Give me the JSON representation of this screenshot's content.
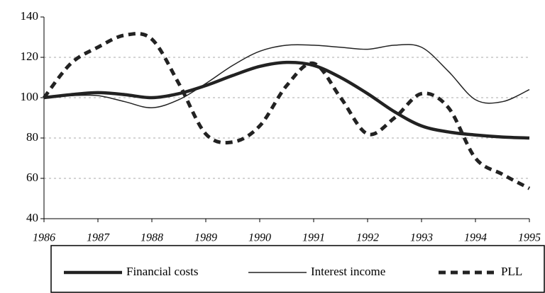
{
  "chart_data": {
    "type": "line",
    "x": [
      1986,
      1986.5,
      1987,
      1987.5,
      1988,
      1988.5,
      1989,
      1989.5,
      1990,
      1990.5,
      1991,
      1991.5,
      1992,
      1992.5,
      1993,
      1993.5,
      1994,
      1994.5,
      1995
    ],
    "series": [
      {
        "name": "Financial costs",
        "color": "#222222",
        "style": "thick",
        "values": [
          100,
          101.5,
          102.5,
          101.5,
          100,
          102,
          106,
          111,
          115.5,
          117.5,
          116,
          110,
          102,
          93,
          86,
          83,
          81.5,
          80.5,
          80
        ]
      },
      {
        "name": "Interest income",
        "color": "#222222",
        "style": "thin",
        "values": [
          100,
          101,
          101,
          98,
          95,
          99,
          107,
          116,
          123,
          126,
          126,
          125,
          124,
          126,
          125,
          113,
          99,
          98,
          104
        ]
      },
      {
        "name": "PLL",
        "color": "#222222",
        "style": "dashed",
        "values": [
          100,
          117,
          125,
          131,
          129,
          107,
          82,
          78,
          86,
          106,
          117,
          100,
          82,
          90,
          102,
          95,
          70,
          62,
          55
        ]
      }
    ],
    "xlim": [
      1986,
      1995
    ],
    "xticks": [
      1986,
      1987,
      1988,
      1989,
      1990,
      1991,
      1992,
      1993,
      1994,
      1995
    ],
    "ylim": [
      40,
      140
    ],
    "yticks": [
      40,
      60,
      80,
      100,
      120,
      140
    ],
    "grid": true,
    "legend": "bottom"
  }
}
